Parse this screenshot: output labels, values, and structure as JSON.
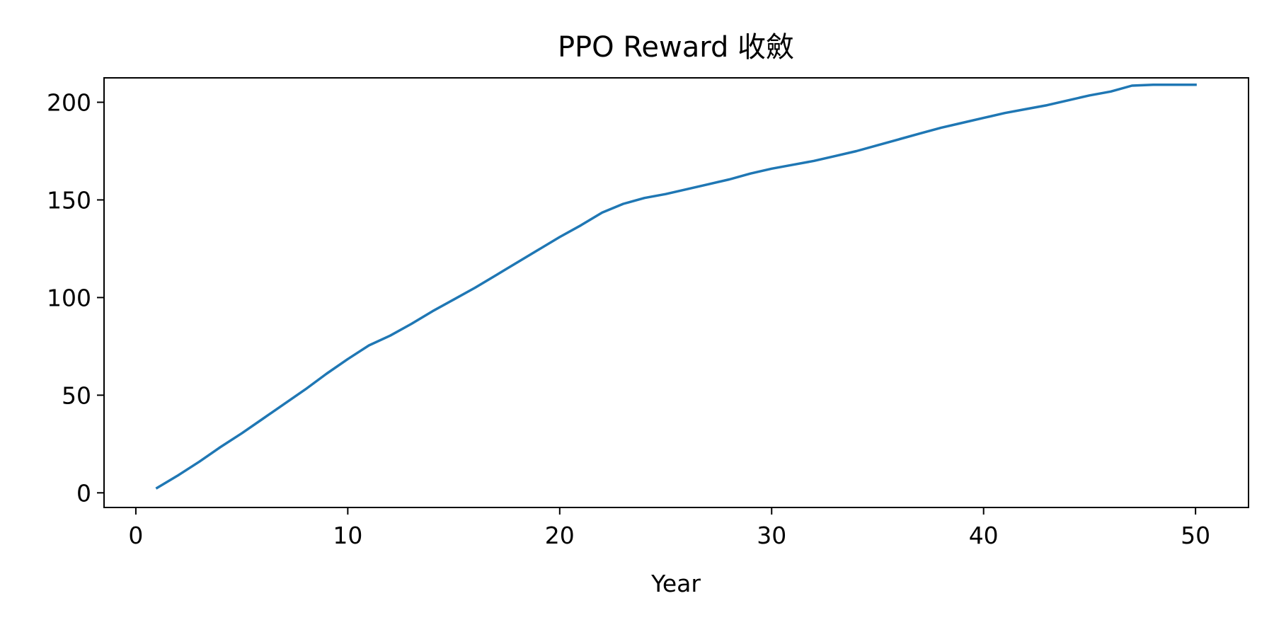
{
  "chart_data": {
    "type": "line",
    "title": "PPO Reward 收斂",
    "xlabel": "Year",
    "ylabel": "",
    "xlim": [
      -1.5,
      52.5
    ],
    "ylim": [
      -7.5,
      212.5
    ],
    "xticks": [
      0,
      10,
      20,
      30,
      40,
      50
    ],
    "yticks": [
      0,
      50,
      100,
      150,
      200
    ],
    "grid": false,
    "line_color": "#1f77b4",
    "series": [
      {
        "x": [
          1,
          2,
          3,
          4,
          5,
          6,
          7,
          8,
          9,
          10,
          11,
          12,
          13,
          14,
          15,
          16,
          17,
          18,
          19,
          20,
          21,
          22,
          23,
          24,
          25,
          26,
          27,
          28,
          29,
          30,
          31,
          32,
          33,
          34,
          35,
          36,
          37,
          38,
          39,
          40,
          41,
          42,
          43,
          44,
          45,
          46,
          47,
          48,
          49,
          50
        ],
        "values": [
          2.5,
          9,
          16,
          23.5,
          30.5,
          38,
          45.5,
          53,
          61,
          68.5,
          75.5,
          80.5,
          86.5,
          93,
          99,
          105,
          111.5,
          118,
          124.5,
          131,
          137,
          143.5,
          148,
          151,
          153,
          155.5,
          158,
          160.5,
          163.5,
          166,
          168,
          170,
          172.5,
          175,
          178,
          181,
          184,
          187,
          189.5,
          192,
          194.5,
          196.5,
          198.5,
          201,
          203.5,
          205.5,
          208.5,
          209,
          209,
          209
        ]
      }
    ]
  }
}
